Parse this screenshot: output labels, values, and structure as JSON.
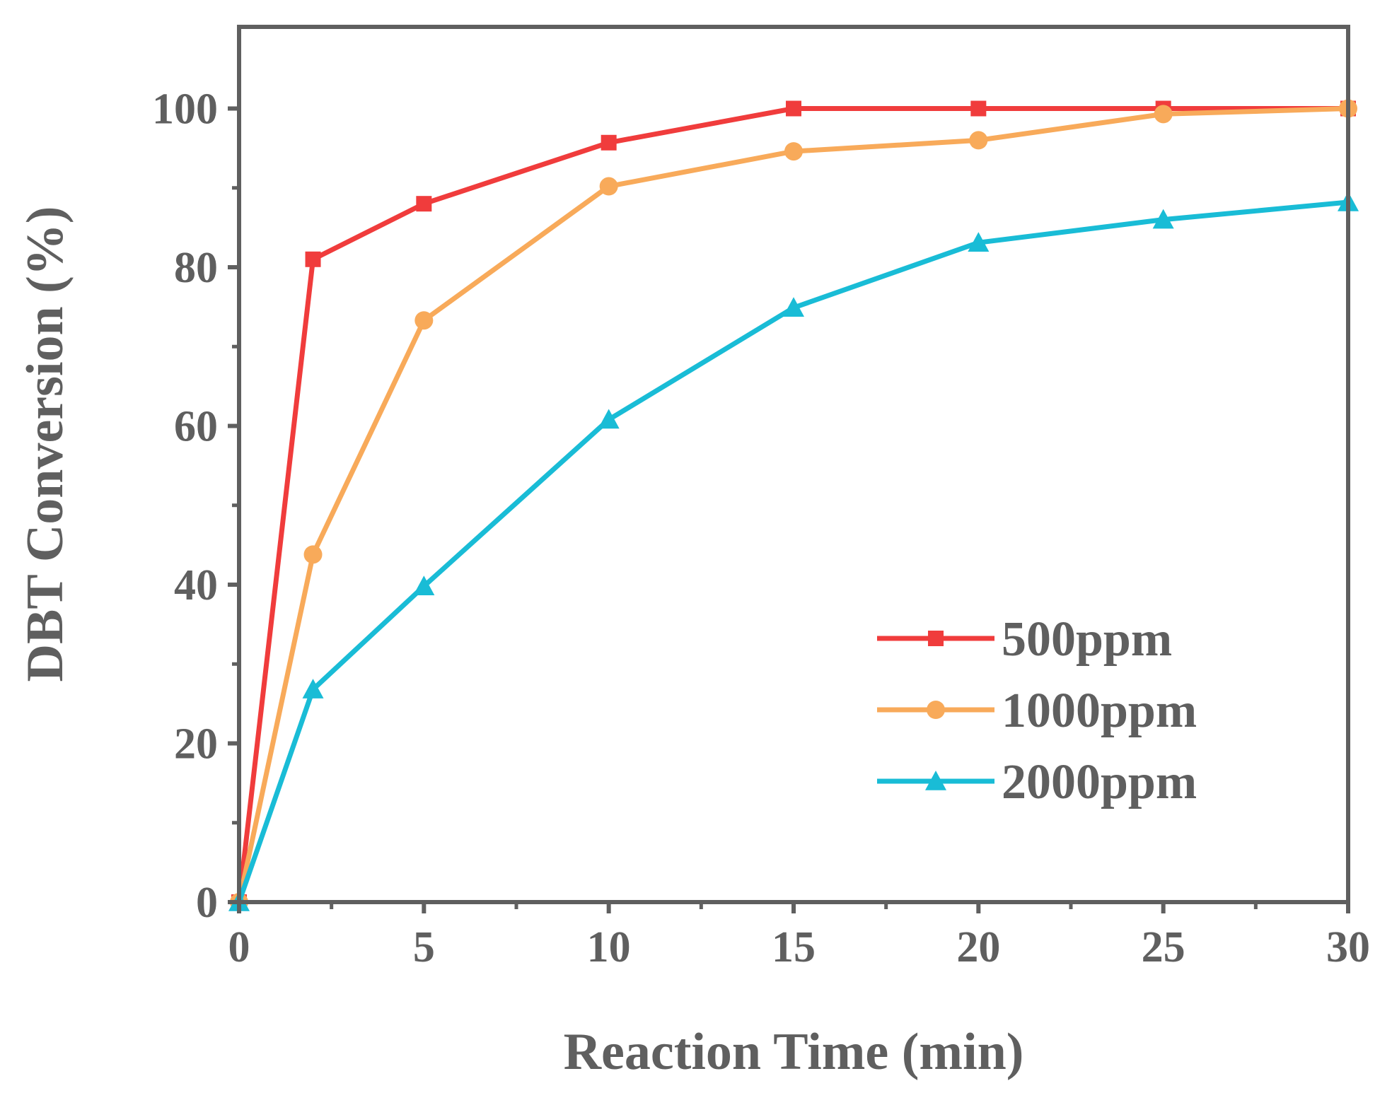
{
  "chart_data": {
    "type": "line",
    "title": "",
    "xlabel": "Reaction Time (min)",
    "ylabel": "DBT Conversion (%)",
    "xlim": [
      0,
      30
    ],
    "ylim": [
      0,
      110
    ],
    "xticks": [
      0,
      5,
      10,
      15,
      20,
      25,
      30
    ],
    "yticks": [
      0,
      20,
      40,
      60,
      80,
      100
    ],
    "grid": false,
    "legend_position": "lower-right",
    "x": [
      0,
      2,
      5,
      10,
      15,
      20,
      25,
      30
    ],
    "series": [
      {
        "name": "500ppm",
        "color": "#f03c3c",
        "marker": "square",
        "values": [
          0,
          81.0,
          88.0,
          95.7,
          100.0,
          100.0,
          100.0,
          100.0
        ]
      },
      {
        "name": "1000ppm",
        "color": "#f8aa5a",
        "marker": "circle",
        "values": [
          0,
          43.8,
          73.3,
          90.2,
          94.6,
          96.0,
          99.3,
          100.0
        ]
      },
      {
        "name": "2000ppm",
        "color": "#19bcd6",
        "marker": "triangle",
        "values": [
          0,
          26.8,
          39.8,
          60.8,
          74.9,
          83.1,
          86.0,
          88.2
        ]
      }
    ]
  }
}
